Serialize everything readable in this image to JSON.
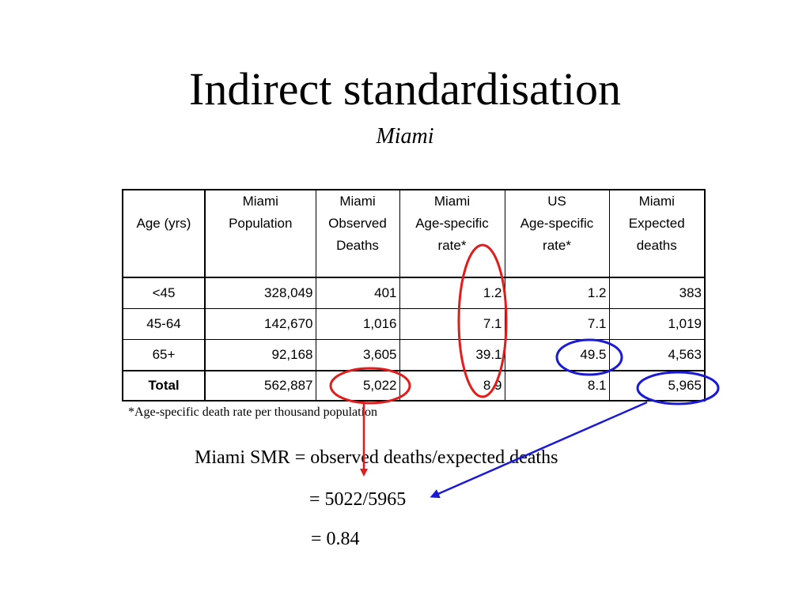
{
  "slide": {
    "title": "Indirect standardisation",
    "subtitle": "Miami"
  },
  "table": {
    "header_row1": [
      "",
      "Miami",
      "Miami",
      "Miami",
      "US",
      "Miami"
    ],
    "header_row2": [
      "Age (yrs)",
      "Population",
      "Observed\nDeaths",
      "Age-specific\nrate*",
      "Age-specific\nrate*",
      "Expected\ndeaths"
    ],
    "rows": [
      [
        "<45",
        "328,049",
        "401",
        "1.2",
        "1.2",
        "383"
      ],
      [
        "45-64",
        "142,670",
        "1,016",
        "7.1",
        "7.1",
        "1,019"
      ],
      [
        "65+",
        "92,168",
        "3,605",
        "39.1",
        "49.5",
        "4,563"
      ]
    ],
    "total": [
      "Total",
      "562,887",
      "5,022",
      "8.9",
      "8.1",
      "5,965"
    ]
  },
  "footnote": "*Age-specific death rate per thousand population",
  "formula": {
    "line1": "Miami SMR = observed deaths/expected deaths",
    "line2": "= 5022/5965",
    "line3": "= 0.84"
  },
  "annotation_colors": {
    "red": "#e31b1b",
    "blue": "#1a1ad6"
  }
}
